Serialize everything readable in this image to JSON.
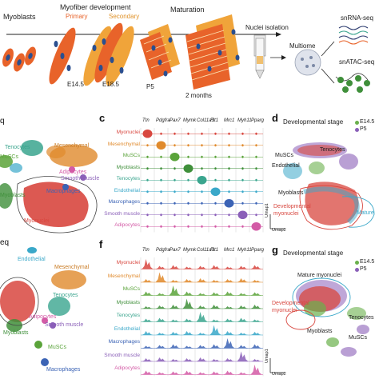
{
  "panel_a": {
    "stage_labels": [
      "Myoblasts",
      "E14.5",
      "E18.5",
      "P5",
      "2 months"
    ],
    "dev_title": "Myofiber development",
    "primary": "Primary",
    "secondary": "Secondary",
    "maturation": "Maturation",
    "nuclei_isolation": "Nuclei isolation",
    "multiome": "Multiome",
    "snrna": "snRNA-seq",
    "snatac": "snATAC-seq"
  },
  "panel_b": {
    "letter": "",
    "title_fragment": "q",
    "clusters": [
      "MuSCs",
      "Tenocytes",
      "Mesenchymal",
      "Adipocytes",
      "Smooth muscle",
      "Macrophages",
      "Myoblasts",
      "Myonuclei"
    ]
  },
  "panel_c": {
    "letter": "c",
    "genes": [
      "Ttn",
      "Pdgfra",
      "Pax7",
      "Mymk",
      "Col11a1",
      "Flt1",
      "Mrc1",
      "Myh11",
      "Pparg"
    ],
    "rows": [
      "Myonuclei",
      "Mesenchymal",
      "MuSCs",
      "Myoblasts",
      "Tenocytes",
      "Endothelial",
      "Macrophages",
      "Smooth muscle",
      "Adipocytes"
    ],
    "row_colors": [
      "#d8473f",
      "#e08a2c",
      "#5aa33a",
      "#3f8f3a",
      "#3aa58e",
      "#3aa8c9",
      "#3b63b5",
      "#8a5fb8",
      "#d35ba6"
    ]
  },
  "panel_d": {
    "letter": "d",
    "title": "Developmental stage",
    "legend": [
      "E14.5",
      "P5"
    ],
    "legend_colors": [
      "#6ab04c",
      "#8a5fb8"
    ],
    "labels": [
      "MuSCs",
      "Tenocytes",
      "Endothelial",
      "Myoblasts",
      "Developmental myonuclei",
      "Mature",
      "Umap1",
      "Umap2"
    ]
  },
  "panel_e": {
    "title_fragment": "eq",
    "clusters": [
      "Endothelial",
      "Mesenchymal",
      "Tenocytes",
      "Adipocytes",
      "Smooth muscle",
      "Myoblasts",
      "MuSCs",
      "Macrophages"
    ]
  },
  "panel_f": {
    "letter": "f",
    "genes": [
      "Ttn",
      "Pdgfra",
      "Pax7",
      "Mymk",
      "Col11a1",
      "Flt1",
      "Mrc1",
      "Myh11",
      "Pparg"
    ],
    "rows": [
      "Myonuclei",
      "Mesenchymal",
      "MuSCs",
      "Myoblasts",
      "Tenocytes",
      "Endothelial",
      "Macrophages",
      "Smooth muscle",
      "Adipocytes"
    ],
    "row_colors": [
      "#d8473f",
      "#e08a2c",
      "#5aa33a",
      "#3f8f3a",
      "#3aa58e",
      "#3aa8c9",
      "#3b63b5",
      "#8a5fb8",
      "#d35ba6"
    ]
  },
  "panel_g": {
    "letter": "g",
    "title": "Developmental stage",
    "legend": [
      "E14.5",
      "P5"
    ],
    "legend_colors": [
      "#6ab04c",
      "#8a5fb8"
    ],
    "labels": [
      "Mature myonuclei",
      "Developmental myonuclei",
      "Tenocytes",
      "Myoblasts",
      "MuSCs",
      "Umap1",
      "Umap2"
    ]
  }
}
